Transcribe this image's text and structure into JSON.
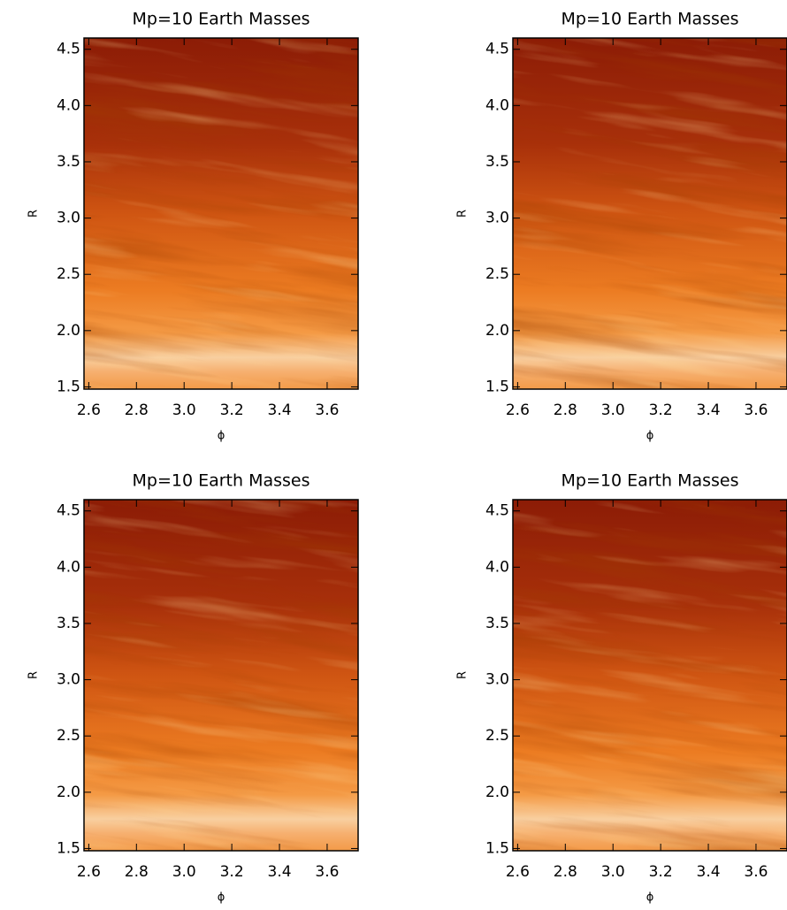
{
  "chart_data": [
    {
      "type": "image",
      "title": "Mp=10 Earth Masses",
      "xlabel": "ϕ",
      "ylabel": "R",
      "xlim": [
        2.58,
        3.73
      ],
      "ylim": [
        1.48,
        4.6
      ],
      "xticks": [
        2.6,
        2.8,
        {
          "value": 3,
          "label": "3.0"
        },
        3.2,
        3.4,
        3.6
      ],
      "yticks": [
        1.5,
        {
          "value": 2,
          "label": "2.0"
        },
        2.5,
        {
          "value": 3,
          "label": "3.0"
        },
        3.5,
        {
          "value": 4,
          "label": "4.0"
        },
        4.5
      ]
    },
    {
      "type": "image",
      "title": "Mp=10 Earth Masses",
      "xlabel": "ϕ",
      "ylabel": "R",
      "xlim": [
        2.58,
        3.73
      ],
      "ylim": [
        1.48,
        4.6
      ],
      "xticks": [
        2.6,
        2.8,
        {
          "value": 3,
          "label": "3.0"
        },
        3.2,
        3.4,
        3.6
      ],
      "yticks": [
        1.5,
        {
          "value": 2,
          "label": "2.0"
        },
        2.5,
        {
          "value": 3,
          "label": "3.0"
        },
        3.5,
        {
          "value": 4,
          "label": "4.0"
        },
        4.5
      ]
    },
    {
      "type": "image",
      "title": "Mp=10 Earth Masses",
      "xlabel": "ϕ",
      "ylabel": "R",
      "xlim": [
        2.58,
        3.73
      ],
      "ylim": [
        1.48,
        4.6
      ],
      "xticks": [
        2.6,
        2.8,
        {
          "value": 3,
          "label": "3.0"
        },
        3.2,
        3.4,
        3.6
      ],
      "yticks": [
        1.5,
        {
          "value": 2,
          "label": "2.0"
        },
        2.5,
        {
          "value": 3,
          "label": "3.0"
        },
        3.5,
        {
          "value": 4,
          "label": "4.0"
        },
        4.5
      ]
    },
    {
      "type": "image",
      "title": "Mp=10 Earth Masses",
      "xlabel": "ϕ",
      "ylabel": "R",
      "xlim": [
        2.58,
        3.73
      ],
      "ylim": [
        1.48,
        4.6
      ],
      "xticks": [
        2.6,
        2.8,
        {
          "value": 3,
          "label": "3.0"
        },
        3.2,
        3.4,
        3.6
      ],
      "yticks": [
        1.5,
        {
          "value": 2,
          "label": "2.0"
        },
        2.5,
        {
          "value": 3,
          "label": "3.0"
        },
        3.5,
        {
          "value": 4,
          "label": "4.0"
        },
        4.5
      ]
    }
  ]
}
